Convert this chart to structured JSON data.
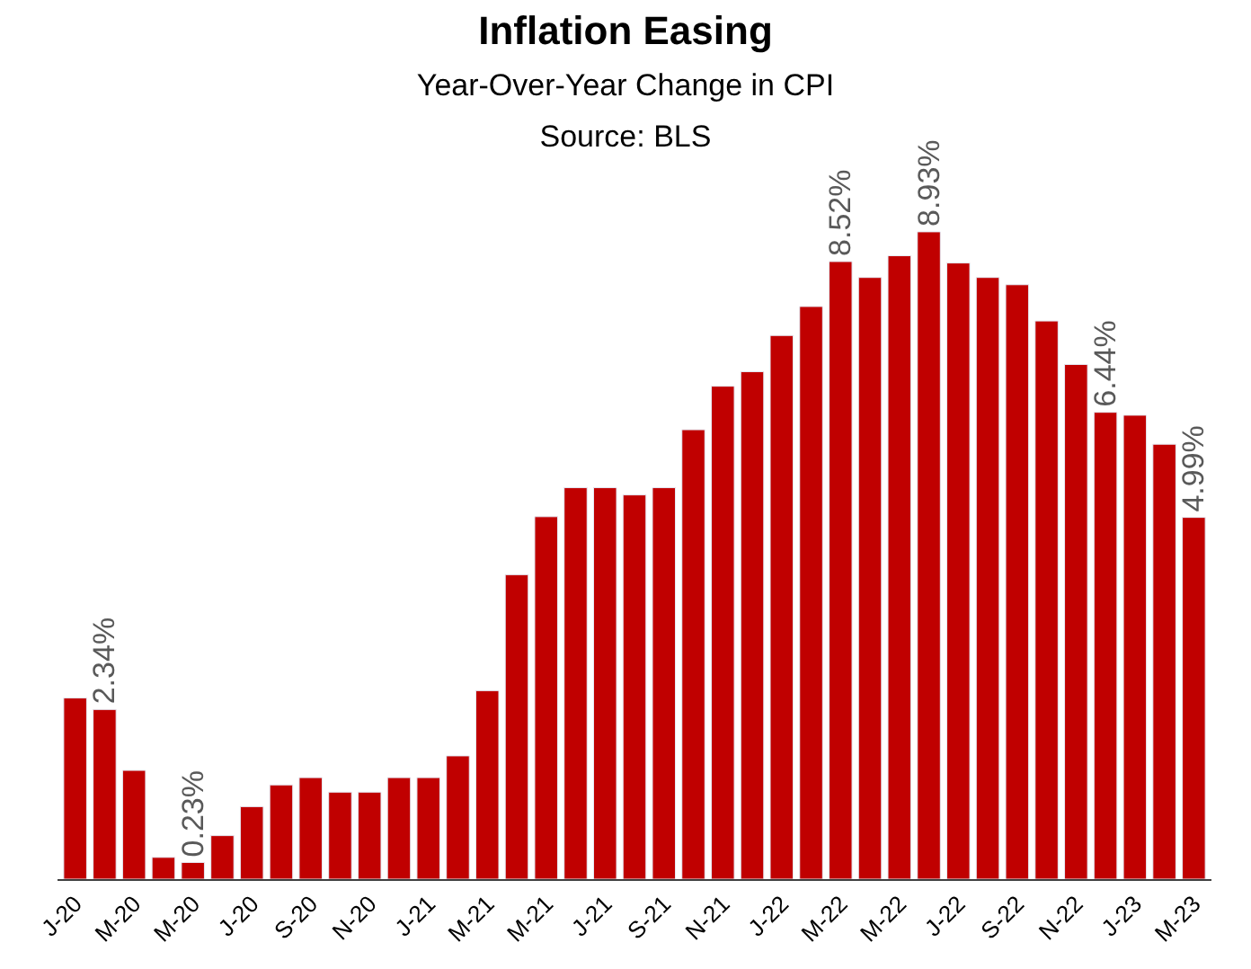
{
  "chart_data": {
    "type": "bar",
    "title": "Inflation Easing",
    "subtitle": "Year-Over-Year Change in CPI\nSource: BLS",
    "categories": [
      "J-20",
      null,
      "M-20",
      null,
      "M-20",
      null,
      "J-20",
      null,
      "S-20",
      null,
      "N-20",
      null,
      "J-21",
      null,
      "M-21",
      null,
      "M-21",
      null,
      "J-21",
      null,
      "S-21",
      null,
      "N-21",
      null,
      "J-22",
      null,
      "M-22",
      null,
      "M-22",
      null,
      "J-22",
      null,
      "S-22",
      null,
      "N-22",
      null,
      "J-23",
      null,
      "M-23"
    ],
    "values": [
      2.5,
      2.34,
      1.5,
      0.3,
      0.23,
      0.6,
      1.0,
      1.3,
      1.4,
      1.2,
      1.2,
      1.4,
      1.4,
      1.7,
      2.6,
      4.2,
      5.0,
      5.4,
      5.4,
      5.3,
      5.4,
      6.2,
      6.8,
      7.0,
      7.5,
      7.9,
      8.52,
      8.3,
      8.6,
      8.93,
      8.5,
      8.3,
      8.2,
      7.7,
      7.1,
      6.44,
      6.4,
      6.0,
      4.99
    ],
    "value_labels": [
      null,
      "2.34%",
      null,
      null,
      "0.23%",
      null,
      null,
      null,
      null,
      null,
      null,
      null,
      null,
      null,
      null,
      null,
      null,
      null,
      null,
      null,
      null,
      null,
      null,
      null,
      null,
      null,
      "8.52%",
      null,
      null,
      "8.93%",
      null,
      null,
      null,
      null,
      null,
      "6.44%",
      null,
      null,
      "4.99%"
    ],
    "color": "#c00000"
  }
}
